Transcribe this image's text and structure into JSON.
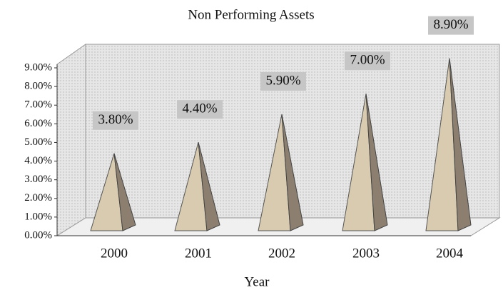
{
  "chart_data": {
    "type": "pyramid3d",
    "title": "Non Performing Assets",
    "x_label": "Year",
    "categories": [
      "2000",
      "2001",
      "2002",
      "2003",
      "2004"
    ],
    "values": [
      3.8,
      4.4,
      5.9,
      7.0,
      8.9
    ],
    "value_labels": [
      "3.80%",
      "4.40%",
      "5.90%",
      "7.00%",
      "8.90%"
    ],
    "ylim": [
      0,
      9
    ],
    "yticks": [
      {
        "value": 0,
        "label": "0.00%"
      },
      {
        "value": 1,
        "label": "1.00%"
      },
      {
        "value": 2,
        "label": "2.00%"
      },
      {
        "value": 3,
        "label": "3.00%"
      },
      {
        "value": 4,
        "label": "4.00%"
      },
      {
        "value": 5,
        "label": "5.00%"
      },
      {
        "value": 6,
        "label": "6.00%"
      },
      {
        "value": 7,
        "label": "7.00%"
      },
      {
        "value": 8,
        "label": "8.00%"
      },
      {
        "value": 9,
        "label": "9.00%"
      }
    ],
    "color": "#d8cbb0",
    "side_color": "#8c7f70"
  }
}
